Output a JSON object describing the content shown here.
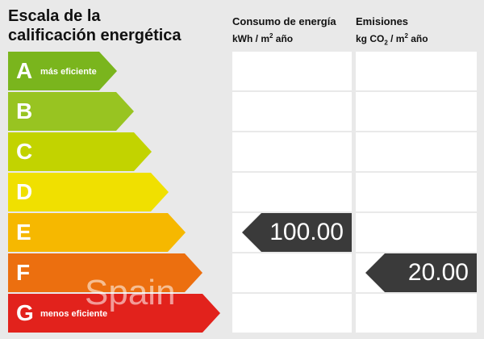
{
  "title_line1": "Escala de la",
  "title_line2": "calificación energética",
  "energy_header": {
    "title": "Consumo de energía",
    "unit_prefix": "kWh / m",
    "unit_sup": "2",
    "unit_suffix": " año"
  },
  "emissions_header": {
    "title": "Emisiones",
    "unit_prefix": "kg CO",
    "unit_sub": "2",
    "unit_mid": " / m",
    "unit_sup": "2",
    "unit_suffix": " año"
  },
  "ratings": [
    {
      "letter": "A",
      "label": "más eficiente",
      "color": "#7ab51d"
    },
    {
      "letter": "B",
      "label": "",
      "color": "#98c421"
    },
    {
      "letter": "C",
      "label": "",
      "color": "#c2d300"
    },
    {
      "letter": "D",
      "label": "",
      "color": "#f0e000"
    },
    {
      "letter": "E",
      "label": "",
      "color": "#f6b800"
    },
    {
      "letter": "F",
      "label": "",
      "color": "#ec6f0f"
    },
    {
      "letter": "G",
      "label": "menos eficiente",
      "color": "#e2221c"
    }
  ],
  "energy_value": "100.00",
  "energy_rating": "E",
  "emissions_value": "20.00",
  "emissions_rating": "F",
  "watermark": "Spain"
}
